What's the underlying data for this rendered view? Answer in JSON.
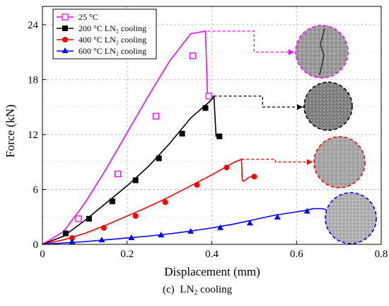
{
  "caption": {
    "prefix": "(c)",
    "text": "LN",
    "sub": "2",
    "suffix": " cooling"
  },
  "chart_data": {
    "type": "line",
    "xlabel": "Displacement (mm)",
    "ylabel": "Force (kN)",
    "xlim": [
      0,
      0.8
    ],
    "ylim": [
      0,
      26
    ],
    "xticks": [
      0,
      0.2,
      0.4,
      0.6,
      0.8
    ],
    "yticks": [
      0,
      6,
      12,
      18,
      24
    ],
    "grid": "dashed",
    "legend_position": "top-left",
    "series": [
      {
        "name": "25 °C",
        "color": "#ff00ff",
        "marker": "open-square",
        "x": [
          0,
          0.05,
          0.1,
          0.15,
          0.2,
          0.25,
          0.3,
          0.35,
          0.385,
          0.39,
          0.4,
          0.403
        ],
        "y": [
          0,
          1.4,
          4.5,
          8.2,
          12.2,
          16.2,
          20.0,
          23.0,
          23.3,
          16.0,
          16.3,
          15.8
        ],
        "markers_x": [
          0.085,
          0.178,
          0.268,
          0.355,
          0.393
        ],
        "markers_y": [
          2.8,
          7.7,
          14.0,
          20.6,
          16.2
        ]
      },
      {
        "name": "200 °C LN₂ cooling",
        "color": "#000000",
        "marker": "filled-square",
        "x": [
          0,
          0.05,
          0.1,
          0.15,
          0.2,
          0.25,
          0.3,
          0.35,
          0.38,
          0.395,
          0.405,
          0.41,
          0.42
        ],
        "y": [
          0,
          0.9,
          2.6,
          4.5,
          6.4,
          8.5,
          11.0,
          13.8,
          15.0,
          15.6,
          16.2,
          11.8,
          11.8
        ],
        "markers_x": [
          0.055,
          0.11,
          0.165,
          0.22,
          0.275,
          0.33,
          0.385,
          0.418
        ],
        "markers_y": [
          1.2,
          2.8,
          4.7,
          7.0,
          9.4,
          12.1,
          14.9,
          11.8
        ]
      },
      {
        "name": "400 °C LN₂ cooling",
        "color": "#ff0000",
        "marker": "filled-circle",
        "x": [
          0,
          0.05,
          0.1,
          0.15,
          0.2,
          0.25,
          0.3,
          0.35,
          0.4,
          0.45,
          0.47,
          0.472,
          0.475,
          0.49,
          0.5
        ],
        "y": [
          0,
          0.5,
          1.2,
          2.1,
          3.1,
          4.1,
          5.2,
          6.4,
          7.6,
          8.9,
          9.3,
          7.0,
          6.9,
          7.4,
          7.4
        ],
        "markers_x": [
          0.07,
          0.145,
          0.22,
          0.29,
          0.365,
          0.435,
          0.5
        ],
        "markers_y": [
          0.7,
          1.8,
          3.1,
          4.6,
          6.5,
          8.4,
          7.4
        ]
      },
      {
        "name": "600 °C LN₂ cooling",
        "color": "#0000ff",
        "marker": "filled-triangle",
        "x": [
          0,
          0.05,
          0.1,
          0.15,
          0.2,
          0.25,
          0.3,
          0.35,
          0.4,
          0.45,
          0.5,
          0.55,
          0.6,
          0.62,
          0.64,
          0.66,
          0.67
        ],
        "y": [
          0,
          0.15,
          0.3,
          0.5,
          0.7,
          0.9,
          1.15,
          1.45,
          1.8,
          2.2,
          2.7,
          3.2,
          3.55,
          3.7,
          3.9,
          3.9,
          3.8
        ],
        "markers_x": [
          0.07,
          0.14,
          0.21,
          0.28,
          0.35,
          0.42,
          0.49,
          0.555,
          0.625
        ],
        "markers_y": [
          0.25,
          0.45,
          0.7,
          1.0,
          1.4,
          1.8,
          2.3,
          2.95,
          3.6
        ]
      }
    ],
    "callouts": [
      {
        "series": 0,
        "color": "#ff00ff",
        "image": "intact-specimen-with-crack"
      },
      {
        "series": 1,
        "color": "#000000",
        "image": "specimen-dark-speckled"
      },
      {
        "series": 2,
        "color": "#ff0000",
        "image": "specimen-light-speckled"
      },
      {
        "series": 3,
        "color": "#0000ff",
        "image": "specimen-light-grainy"
      }
    ]
  }
}
